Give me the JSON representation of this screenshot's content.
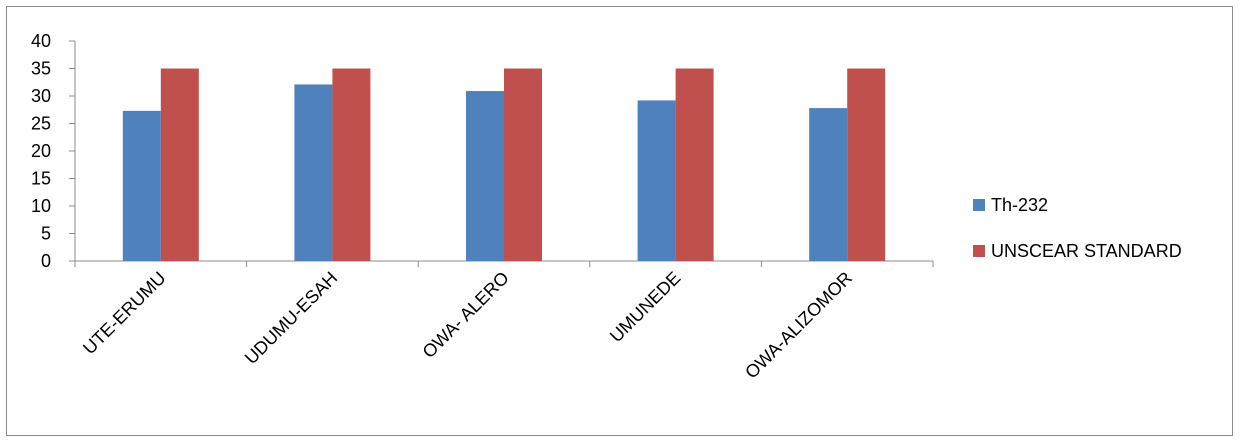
{
  "chart_data": {
    "type": "bar",
    "categories": [
      "UTE-ERUMU",
      "UDUMU-ESAH",
      "OWA- ALERO",
      "UMUNEDE",
      "OWA-ALIZOMOR"
    ],
    "series": [
      {
        "name": "Th-232",
        "values": [
          27.3,
          32.1,
          30.9,
          29.2,
          27.8
        ],
        "color": "#4f81bd"
      },
      {
        "name": "UNSCEAR STANDARD",
        "values": [
          35,
          35,
          35,
          35,
          35
        ],
        "color": "#c0504d"
      }
    ],
    "title": "",
    "xlabel": "",
    "ylabel": "",
    "ylim": [
      0,
      40
    ],
    "yticks": [
      0,
      5,
      10,
      15,
      20,
      25,
      30,
      35,
      40
    ],
    "grid": false,
    "legend_position": "right"
  }
}
